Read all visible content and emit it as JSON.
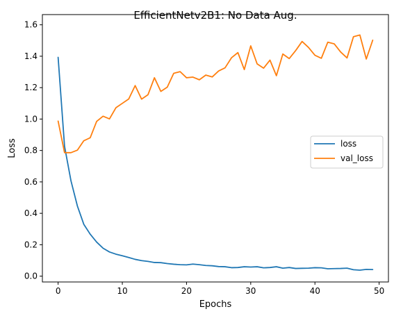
{
  "chart_data": {
    "type": "line",
    "title": "EfficientNetv2B1: No Data Aug.",
    "xlabel": "Epochs",
    "ylabel": "Loss",
    "xlim": [
      -2.45,
      51.45
    ],
    "ylim": [
      -0.037,
      1.665
    ],
    "xticks": [
      0,
      10,
      20,
      30,
      40,
      50
    ],
    "yticks": [
      0.0,
      0.2,
      0.4,
      0.6,
      0.8,
      1.0,
      1.2,
      1.4,
      1.6
    ],
    "xtick_labels": [
      "0",
      "10",
      "20",
      "30",
      "40",
      "50"
    ],
    "ytick_labels": [
      "0.0",
      "0.2",
      "0.4",
      "0.6",
      "0.8",
      "1.0",
      "1.2",
      "1.4",
      "1.6"
    ],
    "grid": false,
    "legend_position": "center-right",
    "x": [
      0,
      1,
      2,
      3,
      4,
      5,
      6,
      7,
      8,
      9,
      10,
      11,
      12,
      13,
      14,
      15,
      16,
      17,
      18,
      19,
      20,
      21,
      22,
      23,
      24,
      25,
      26,
      27,
      28,
      29,
      30,
      31,
      32,
      33,
      34,
      35,
      36,
      37,
      38,
      39,
      40,
      41,
      42,
      43,
      44,
      45,
      46,
      47,
      48,
      49
    ],
    "series": [
      {
        "name": "loss",
        "color": "#1f77b4",
        "values": [
          1.393,
          0.827,
          0.607,
          0.447,
          0.33,
          0.267,
          0.217,
          0.178,
          0.154,
          0.14,
          0.13,
          0.119,
          0.107,
          0.099,
          0.094,
          0.087,
          0.086,
          0.08,
          0.076,
          0.073,
          0.072,
          0.077,
          0.073,
          0.068,
          0.066,
          0.061,
          0.06,
          0.054,
          0.055,
          0.06,
          0.058,
          0.06,
          0.053,
          0.055,
          0.06,
          0.051,
          0.055,
          0.049,
          0.05,
          0.051,
          0.054,
          0.053,
          0.047,
          0.048,
          0.049,
          0.051,
          0.041,
          0.038,
          0.043,
          0.042
        ]
      },
      {
        "name": "val_loss",
        "color": "#ff7f0e",
        "values": [
          0.987,
          0.786,
          0.786,
          0.802,
          0.862,
          0.881,
          0.985,
          1.018,
          1.001,
          1.072,
          1.1,
          1.128,
          1.213,
          1.127,
          1.155,
          1.263,
          1.176,
          1.203,
          1.291,
          1.302,
          1.263,
          1.267,
          1.25,
          1.28,
          1.268,
          1.306,
          1.326,
          1.39,
          1.423,
          1.315,
          1.466,
          1.351,
          1.324,
          1.375,
          1.276,
          1.414,
          1.385,
          1.436,
          1.494,
          1.456,
          1.406,
          1.387,
          1.489,
          1.479,
          1.427,
          1.389,
          1.524,
          1.535,
          1.382,
          1.502
        ]
      }
    ]
  }
}
